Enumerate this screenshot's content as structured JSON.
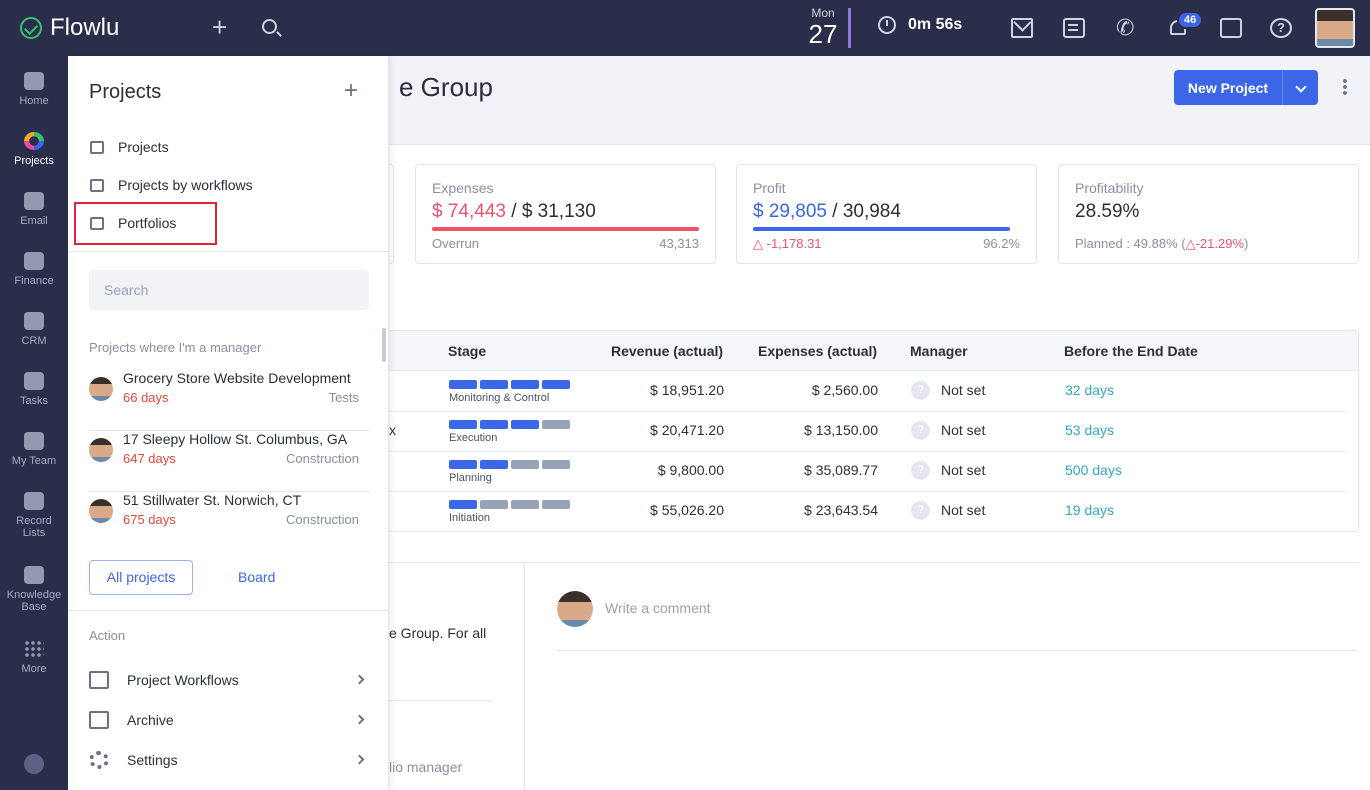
{
  "topbar": {
    "brand": "Flowlu",
    "date_dow": "Mon",
    "date_day": "27",
    "timer": "0m 56s",
    "notifications_count": "46",
    "icons": [
      "plus-icon",
      "search-icon",
      "stopwatch-icon",
      "mail-icon",
      "notes-icon",
      "phone-icon",
      "bell-icon",
      "chat-icon",
      "help-icon"
    ]
  },
  "rail": {
    "items": [
      {
        "label": "Home",
        "icon": "home-icon"
      },
      {
        "label": "Projects",
        "icon": "projects-icon"
      },
      {
        "label": "Email",
        "icon": "email-icon"
      },
      {
        "label": "Finance",
        "icon": "finance-icon"
      },
      {
        "label": "CRM",
        "icon": "crm-icon"
      },
      {
        "label": "Tasks",
        "icon": "tasks-icon"
      },
      {
        "label": "My Team",
        "icon": "team-icon"
      },
      {
        "label": "Record Lists",
        "icon": "record-lists-icon"
      },
      {
        "label": "Knowledge Base",
        "icon": "knowledge-base-icon"
      },
      {
        "label": "More",
        "icon": "more-icon"
      }
    ]
  },
  "main": {
    "title_fragment": "e Group",
    "new_project_label": "New Project",
    "cards": {
      "expenses": {
        "title": "Expenses",
        "actual": "$ 74,443",
        "sep": " / ",
        "planned": "$ 31,130",
        "left_label": "Overrun",
        "right_value": "43,313",
        "bar_color": "#f0526b"
      },
      "profit": {
        "title": "Profit",
        "actual": "$ 29,805",
        "sep": " / ",
        "planned": "30,984",
        "left_label": "△ -1,178.31",
        "right_value": "96.2%",
        "bar_color": "#3c66e8",
        "bar_fill": 0.962
      },
      "profitability": {
        "title": "Profitability",
        "value": "28.59%",
        "planned_prefix": "Planned : 49.88% (",
        "planned_delta": "△-21.29%",
        "planned_suffix": ")"
      }
    },
    "table": {
      "columns": [
        "Stage",
        "Revenue (actual)",
        "Expenses (actual)",
        "Manager",
        "Before the End Date"
      ],
      "rows": [
        {
          "name_fragment": "",
          "stage": "Monitoring & Control",
          "stage_fill": 4,
          "revenue": "$ 18,951.20",
          "expenses": "$ 2,560.00",
          "manager": "Not set",
          "days": "32 days"
        },
        {
          "name_fragment": "x",
          "stage": "Execution",
          "stage_fill": 3,
          "revenue": "$ 20,471.20",
          "expenses": "$ 13,150.00",
          "manager": "Not set",
          "days": "53 days"
        },
        {
          "name_fragment": "",
          "stage": "Planning",
          "stage_fill": 2,
          "revenue": "$ 9,800.00",
          "expenses": "$ 35,089.77",
          "manager": "Not set",
          "days": "500 days"
        },
        {
          "name_fragment": "",
          "stage": "Initiation",
          "stage_fill": 1,
          "revenue": "$ 55,026.20",
          "expenses": "$ 23,643.54",
          "manager": "Not set",
          "days": "19 days"
        }
      ]
    },
    "description_fragment": "e Group. For all",
    "manager_fragment": "lio manager",
    "comment_placeholder": "Write a comment"
  },
  "panel": {
    "title": "Projects",
    "links": [
      {
        "label": "Projects",
        "icon": "list-icon"
      },
      {
        "label": "Projects by workflows",
        "icon": "kanban-icon"
      },
      {
        "label": "Portfolios",
        "icon": "briefcase-icon"
      }
    ],
    "search_placeholder": "Search",
    "subheading": "Projects where I'm a manager",
    "projects": [
      {
        "name": "Grocery Store Website Development",
        "days": "66 days",
        "type": "Tests"
      },
      {
        "name": "17 Sleepy Hollow St. Columbus, GA",
        "days": "647 days",
        "type": "Construction"
      },
      {
        "name": "51 Stillwater St. Norwich, CT",
        "days": "675 days",
        "type": "Construction"
      }
    ],
    "all_projects_label": "All projects",
    "board_label": "Board",
    "action_heading": "Action",
    "actions": [
      {
        "label": "Project Workflows",
        "icon": "workflow-icon"
      },
      {
        "label": "Archive",
        "icon": "archive-icon"
      },
      {
        "label": "Settings",
        "icon": "gear-icon"
      }
    ]
  }
}
